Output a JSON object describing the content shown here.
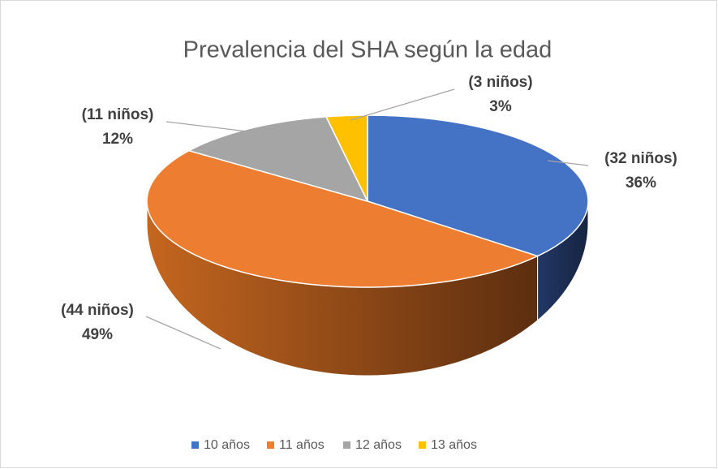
{
  "chart_data": {
    "type": "pie",
    "title": "Prevalencia del SHA según la edad",
    "categories": [
      "10 años",
      "11 años",
      "12 años",
      "13 años"
    ],
    "values": [
      36,
      49,
      12,
      3
    ],
    "value_labels": [
      "36%",
      "49%",
      "12%",
      "3%"
    ],
    "counts": [
      32,
      44,
      11,
      3
    ],
    "count_labels": [
      "(32 niños)",
      "(44 niños)",
      "(11 niños)",
      "(3 niños)"
    ],
    "colors": [
      "#4472c4",
      "#ed7d31",
      "#a5a5a5",
      "#ffc000"
    ],
    "legend": "bottom"
  }
}
